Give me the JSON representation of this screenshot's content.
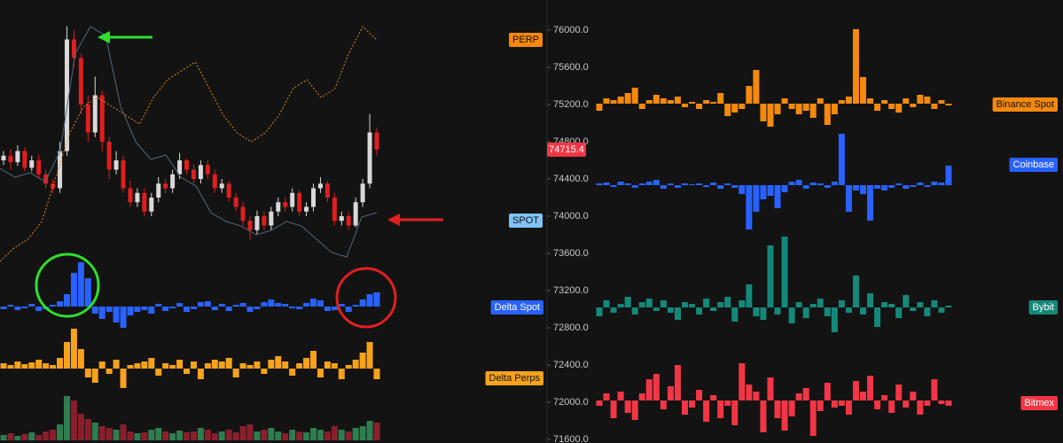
{
  "price_axis": {
    "ticks": [
      {
        "value": 76000,
        "label": "76000.0"
      },
      {
        "value": 75600,
        "label": "75600.0"
      },
      {
        "value": 75200,
        "label": "75200.0"
      },
      {
        "value": 74800,
        "label": "74800.0"
      },
      {
        "value": 74400,
        "label": "74400.0"
      },
      {
        "value": 74000,
        "label": "74000.0"
      },
      {
        "value": 73600,
        "label": "73600.0"
      },
      {
        "value": 73200,
        "label": "73200.0"
      },
      {
        "value": 72800,
        "label": "72800.0"
      },
      {
        "value": 72400,
        "label": "72400.0"
      },
      {
        "value": 72000,
        "label": "72000.0"
      },
      {
        "value": 71600,
        "label": "71600.0"
      }
    ],
    "last_price": 74715.4,
    "last_price_color": "#f23645"
  },
  "candles": {
    "up_color": "#d9d9d9",
    "down_color": "#e01e1e",
    "open": [
      74600,
      74650,
      74580,
      74700,
      74520,
      74600,
      74450,
      74350,
      74300,
      74700,
      75900,
      75700,
      75200,
      74900,
      75300,
      74800,
      74500,
      74600,
      74300,
      74150,
      74250,
      74050,
      74200,
      74350,
      74300,
      74450,
      74600,
      74500,
      74400,
      74550,
      74450,
      74300,
      74350,
      74200,
      74100,
      73950,
      73850,
      74000,
      73900,
      74050,
      74150,
      74100,
      74250,
      74050,
      74100,
      74300,
      74350,
      74200,
      73950,
      74000,
      73900,
      74150,
      74350,
      74900
    ],
    "high": [
      74700,
      74720,
      74760,
      74740,
      74650,
      74660,
      74500,
      74400,
      74800,
      76040,
      76000,
      75750,
      75300,
      75500,
      75350,
      74850,
      74700,
      74650,
      74380,
      74300,
      74300,
      74250,
      74420,
      74400,
      74500,
      74680,
      74620,
      74560,
      74600,
      74600,
      74500,
      74400,
      74380,
      74250,
      74150,
      74000,
      74060,
      74050,
      74100,
      74200,
      74200,
      74300,
      74280,
      74150,
      74350,
      74420,
      74380,
      74250,
      74050,
      74050,
      74200,
      74400,
      75100,
      74950
    ],
    "low": [
      74550,
      74500,
      74540,
      74480,
      74480,
      74400,
      74300,
      74250,
      74250,
      74650,
      75600,
      75100,
      74800,
      74850,
      74700,
      74400,
      74450,
      74250,
      74100,
      74100,
      74000,
      74000,
      74150,
      74250,
      74250,
      74400,
      74450,
      74350,
      74350,
      74400,
      74250,
      74250,
      74150,
      74050,
      73900,
      73750,
      73800,
      73850,
      73850,
      74000,
      74050,
      74050,
      74000,
      74000,
      74050,
      74250,
      74150,
      73900,
      73900,
      73850,
      73880,
      74100,
      74300,
      74650
    ],
    "close": [
      74650,
      74580,
      74700,
      74520,
      74600,
      74450,
      74350,
      74300,
      74700,
      75900,
      75700,
      75200,
      74900,
      75300,
      74800,
      74500,
      74600,
      74300,
      74150,
      74250,
      74050,
      74200,
      74350,
      74300,
      74450,
      74600,
      74500,
      74400,
      74550,
      74450,
      74300,
      74350,
      74200,
      74100,
      73950,
      73850,
      74000,
      73900,
      74050,
      74150,
      74100,
      74250,
      74050,
      74100,
      74300,
      74350,
      74200,
      73950,
      74000,
      73900,
      74150,
      74350,
      74900,
      74715
    ]
  },
  "overlays": [
    {
      "name": "PERP",
      "color": "#f5890d",
      "line_color": "#e08a1e",
      "values": [
        73514,
        73657,
        73752,
        73943,
        74419,
        74895,
        75181,
        75276,
        75181,
        75086,
        74990,
        75276,
        75467,
        75562,
        75657,
        75371,
        75086,
        74895,
        74800,
        74895,
        75086,
        75371,
        75467,
        75276,
        75371,
        75752,
        76038,
        75895
      ]
    },
    {
      "name": "SPOT",
      "color": "#7fc4f5",
      "line_color": "#56677a",
      "values": [
        74514,
        74419,
        74467,
        74371,
        74705,
        75752,
        76038,
        75943,
        75181,
        74800,
        74610,
        74657,
        74419,
        74324,
        74038,
        73943,
        73895,
        73800,
        73848,
        73943,
        73895,
        73752,
        73610,
        73562,
        73990,
        74038
      ]
    }
  ],
  "left_histograms": [
    {
      "name": "Delta Spot",
      "color": "#2962ff",
      "values": [
        -3,
        2,
        -4,
        -2,
        3,
        -5,
        -3,
        2,
        6,
        14,
        38,
        50,
        32,
        -8,
        -14,
        -6,
        -18,
        -24,
        -10,
        -6,
        -4,
        -8,
        3,
        -5,
        -2,
        4,
        -6,
        -3,
        5,
        6,
        -4,
        3,
        -5,
        2,
        4,
        -6,
        -3,
        5,
        8,
        4,
        3,
        -2,
        -3,
        4,
        9,
        7,
        -5,
        -4,
        3,
        -6,
        2,
        8,
        14,
        16
      ]
    },
    {
      "name": "Delta Perps",
      "color": "#f7a21b",
      "values": [
        6,
        4,
        8,
        5,
        7,
        10,
        6,
        4,
        12,
        30,
        45,
        22,
        -10,
        -16,
        8,
        -6,
        10,
        -22,
        4,
        6,
        8,
        12,
        -8,
        6,
        4,
        10,
        -6,
        8,
        -12,
        6,
        10,
        8,
        12,
        -10,
        6,
        4,
        8,
        -6,
        10,
        14,
        8,
        -8,
        6,
        12,
        20,
        -10,
        8,
        6,
        -12,
        4,
        10,
        18,
        30,
        -12
      ]
    }
  ],
  "volume": {
    "up_color": "#2e7d4f",
    "down_color": "#8a1f2c",
    "values": [
      6,
      8,
      5,
      7,
      9,
      6,
      10,
      12,
      18,
      50,
      45,
      30,
      24,
      20,
      16,
      14,
      12,
      18,
      10,
      8,
      9,
      12,
      14,
      10,
      8,
      11,
      9,
      10,
      14,
      12,
      8,
      10,
      12,
      9,
      16,
      18,
      10,
      12,
      14,
      10,
      8,
      12,
      10,
      9,
      14,
      12,
      10,
      16,
      12,
      10,
      14,
      16,
      22,
      20
    ]
  },
  "right_histograms": [
    {
      "name": "Binance Spot",
      "color": "#f5890d",
      "values": [
        -8,
        6,
        4,
        8,
        12,
        18,
        -6,
        4,
        10,
        6,
        4,
        8,
        -4,
        2,
        -6,
        4,
        2,
        12,
        -14,
        -10,
        -6,
        20,
        38,
        -20,
        -26,
        -12,
        6,
        -6,
        -12,
        -8,
        -16,
        6,
        -24,
        -12,
        4,
        8,
        84,
        30,
        6,
        -8,
        4,
        -6,
        -10,
        6,
        -4,
        10,
        8,
        -6,
        4,
        -2
      ]
    },
    {
      "name": "Coinbase",
      "color": "#2962ff",
      "values": [
        2,
        3,
        -2,
        4,
        2,
        -3,
        2,
        4,
        6,
        -4,
        2,
        -3,
        2,
        1,
        2,
        -2,
        3,
        -4,
        2,
        -3,
        -10,
        -50,
        -30,
        -16,
        -12,
        -26,
        -8,
        4,
        6,
        -4,
        3,
        2,
        -3,
        4,
        58,
        -30,
        -6,
        -10,
        -40,
        -4,
        -6,
        -3,
        2,
        -4,
        -2,
        3,
        -2,
        4,
        3,
        22
      ]
    },
    {
      "name": "Bybit",
      "color": "#14897a",
      "values": [
        -10,
        8,
        -6,
        4,
        12,
        -8,
        6,
        10,
        -4,
        8,
        -6,
        -14,
        6,
        4,
        -8,
        10,
        -4,
        6,
        12,
        -16,
        8,
        26,
        -10,
        -14,
        70,
        -8,
        80,
        -18,
        6,
        -12,
        4,
        10,
        -10,
        -28,
        8,
        -6,
        36,
        -8,
        16,
        -22,
        6,
        4,
        -12,
        14,
        -4,
        6,
        -10,
        8,
        -6,
        2
      ]
    },
    {
      "name": "Bitmex",
      "color": "#f23645",
      "values": [
        -6,
        8,
        -20,
        10,
        -14,
        -22,
        8,
        24,
        30,
        -10,
        16,
        40,
        -16,
        -8,
        12,
        -24,
        6,
        -20,
        -6,
        -28,
        42,
        18,
        10,
        -36,
        26,
        -20,
        -34,
        -18,
        8,
        14,
        -40,
        -12,
        20,
        -8,
        -6,
        -16,
        22,
        10,
        28,
        -10,
        6,
        -14,
        18,
        -8,
        10,
        -16,
        -6,
        24,
        -4,
        -6
      ]
    }
  ]
}
